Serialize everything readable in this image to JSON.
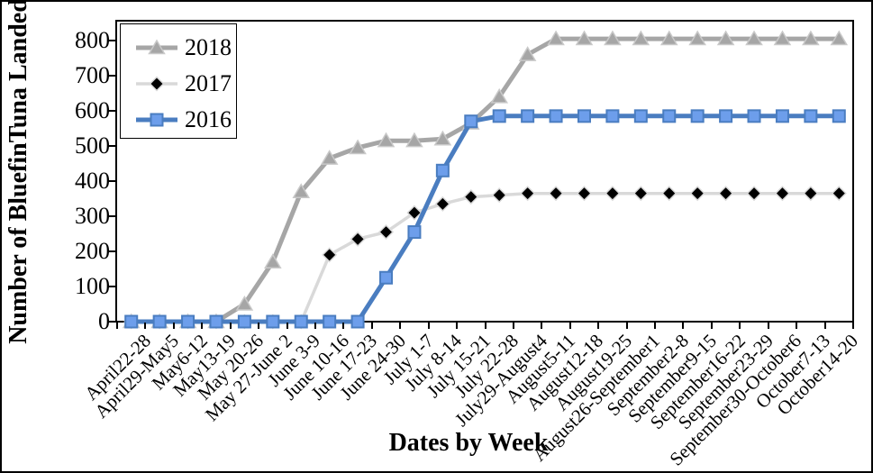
{
  "chart_data": {
    "type": "line",
    "title": "",
    "xlabel": "Dates by Week",
    "ylabel": "Number of BluefinTuna Landed",
    "ylim": [
      0,
      800
    ],
    "y_ticks": [
      0,
      100,
      200,
      300,
      400,
      500,
      600,
      700,
      800
    ],
    "grid": false,
    "legend_position": "top-left",
    "categories": [
      "April22-28",
      "April29-May5",
      "May6-12",
      "May13-19",
      "May 20-26",
      "May 27-June 2",
      "June 3-9",
      "June 10-16",
      "June 17-23",
      "June 24-30",
      "July 1-7",
      "July 8-14",
      "July 15-21",
      "July 22-28",
      "July29-August4",
      "August5-11",
      "August12-18",
      "August19-25",
      "August26-September1",
      "September2-8",
      "September9-15",
      "September16-22",
      "September23-29",
      "September30-October6",
      "October7-13",
      "October14-20"
    ],
    "series": [
      {
        "name": "2018",
        "marker": "triangle",
        "line_color": "#a6a6a6",
        "marker_fill": "#a6a6a6",
        "marker_edge": "#c9c9c9",
        "values": [
          0,
          0,
          0,
          0,
          50,
          170,
          370,
          465,
          495,
          515,
          515,
          520,
          565,
          640,
          760,
          805,
          805,
          805,
          805,
          805,
          805,
          805,
          805,
          805,
          805,
          805
        ]
      },
      {
        "name": "2017",
        "marker": "diamond",
        "line_color": "#d9d9d9",
        "marker_fill": "#000000",
        "marker_edge": "#d9d9d9",
        "values": [
          0,
          0,
          0,
          0,
          0,
          0,
          0,
          190,
          235,
          255,
          310,
          335,
          355,
          360,
          365,
          365,
          365,
          365,
          365,
          365,
          365,
          365,
          365,
          365,
          365,
          365
        ]
      },
      {
        "name": "2016",
        "marker": "square",
        "line_color": "#4a7dc0",
        "marker_fill": "#6d9eeb",
        "marker_edge": "#4a7dc0",
        "values": [
          0,
          0,
          0,
          0,
          0,
          0,
          0,
          0,
          0,
          125,
          255,
          430,
          570,
          585,
          585,
          585,
          585,
          585,
          585,
          585,
          585,
          585,
          585,
          585,
          585,
          585
        ]
      }
    ]
  }
}
